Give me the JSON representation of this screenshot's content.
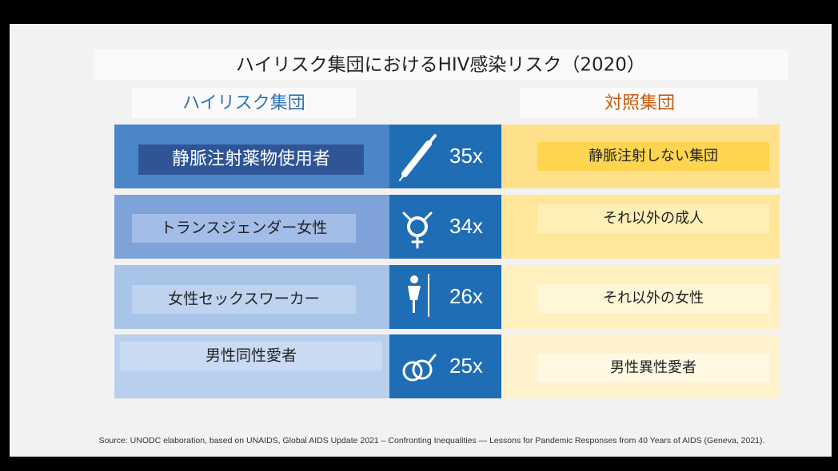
{
  "title": "ハイリスク集団におけるHIV感染リスク（2020）",
  "headers": {
    "group": "ハイリスク集団",
    "control": "対照集団"
  },
  "rows": [
    {
      "group": "静脈注射薬物使用者",
      "ratio": "35x",
      "control": "静脈注射しない集団"
    },
    {
      "group": "トランスジェンダー女性",
      "ratio": "34x",
      "control": "それ以外の成人"
    },
    {
      "group": "女性セックスワーカー",
      "ratio": "26x",
      "control": "それ以外の女性"
    },
    {
      "group": "男性同性愛者",
      "ratio": "25x",
      "control": "男性異性愛者"
    }
  ],
  "source": "Source: UNODC elaboration, based on UNAIDS, Global AIDS Update 2021 – Confronting Inequalities — Lessons for Pandemic Responses from 40 Years of AIDS (Geneva, 2021)."
}
